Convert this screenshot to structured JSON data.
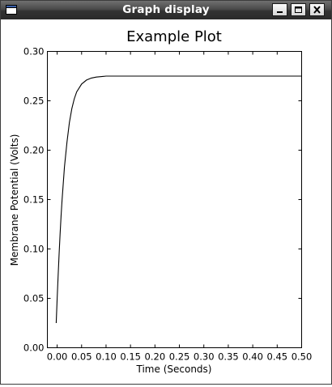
{
  "window": {
    "title": "Graph display",
    "controls": {
      "minimize_icon": "minimize-icon",
      "maximize_icon": "maximize-icon",
      "close_icon": "close-icon"
    },
    "app_icon": "window-icon"
  },
  "chart_data": {
    "type": "line",
    "title": "Example Plot",
    "xlabel": "Time (Seconds)",
    "ylabel": "Membrane Potential (Volts)",
    "xlim": [
      -0.02,
      0.5
    ],
    "ylim": [
      0.0,
      0.3
    ],
    "xticks": [
      "0.00",
      "0.05",
      "0.10",
      "0.15",
      "0.20",
      "0.25",
      "0.30",
      "0.35",
      "0.40",
      "0.45",
      "0.50"
    ],
    "yticks": [
      "0.00",
      "0.05",
      "0.10",
      "0.15",
      "0.20",
      "0.25",
      "0.30"
    ],
    "grid": false,
    "series": [
      {
        "x": [
          -0.002,
          0.0,
          0.002,
          0.004,
          0.006,
          0.008,
          0.01,
          0.015,
          0.02,
          0.025,
          0.03,
          0.035,
          0.04,
          0.05,
          0.06,
          0.07,
          0.08,
          0.1,
          0.15,
          0.2,
          0.3,
          0.4,
          0.5
        ],
        "y": [
          0.025,
          0.05,
          0.073,
          0.095,
          0.115,
          0.133,
          0.149,
          0.183,
          0.208,
          0.228,
          0.242,
          0.252,
          0.259,
          0.267,
          0.271,
          0.273,
          0.274,
          0.275,
          0.275,
          0.275,
          0.275,
          0.275,
          0.275
        ],
        "color": "#000000"
      }
    ]
  }
}
